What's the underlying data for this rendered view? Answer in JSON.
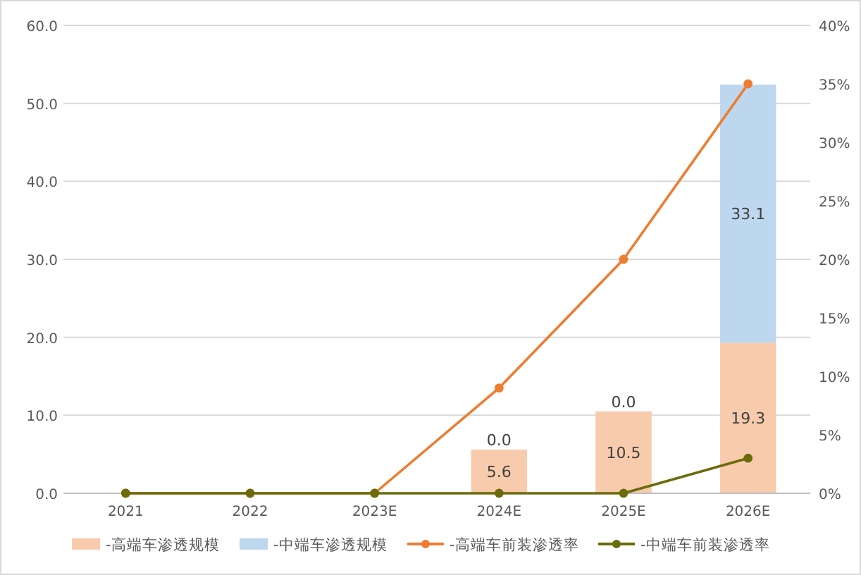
{
  "chart_data": {
    "type": "bar",
    "stacked": true,
    "categories": [
      "2021",
      "2022",
      "2023E",
      "2024E",
      "2025E",
      "2026E"
    ],
    "series": [
      {
        "name": "-高端车渗透规模",
        "color": "#f8cbad",
        "values": [
          0,
          0,
          0,
          5.6,
          10.5,
          19.3
        ],
        "value_labels": [
          null,
          null,
          null,
          "5.6",
          "10.5",
          "19.3"
        ]
      },
      {
        "name": "-中端车渗透规模",
        "color": "#bdd7ee",
        "values": [
          0,
          0,
          0,
          0,
          0,
          33.1
        ],
        "value_labels": [
          null,
          null,
          null,
          "0.0",
          "0.0",
          "33.1"
        ]
      },
      {
        "name": "-高端车前装渗透率",
        "type": "line",
        "axis": "y2",
        "color": "#ed7d31",
        "values": [
          0,
          0,
          0,
          9,
          20,
          35
        ]
      },
      {
        "name": "-中端车前装渗透率",
        "type": "line",
        "axis": "y2",
        "color": "#6b6b0a",
        "values": [
          0,
          0,
          0,
          0,
          0,
          3
        ]
      }
    ],
    "ylim": [
      0,
      60
    ],
    "yticks": [
      {
        "value": 0,
        "label": "0.0"
      },
      {
        "value": 10,
        "label": "10.0"
      },
      {
        "value": 20,
        "label": "20.0"
      },
      {
        "value": 30,
        "label": "30.0"
      },
      {
        "value": 40,
        "label": "40.0"
      },
      {
        "value": 50,
        "label": "50.0"
      },
      {
        "value": 60,
        "label": "60.0"
      }
    ],
    "y2lim": [
      0,
      40
    ],
    "y2ticks": [
      {
        "value": 0,
        "label": "0%"
      },
      {
        "value": 5,
        "label": "5%"
      },
      {
        "value": 10,
        "label": "10%"
      },
      {
        "value": 15,
        "label": "15%"
      },
      {
        "value": 20,
        "label": "20%"
      },
      {
        "value": 25,
        "label": "25%"
      },
      {
        "value": 30,
        "label": "30%"
      },
      {
        "value": 35,
        "label": "35%"
      },
      {
        "value": 40,
        "label": "40%"
      }
    ],
    "grid": "y",
    "legend": "bottom",
    "marker": "circle"
  }
}
